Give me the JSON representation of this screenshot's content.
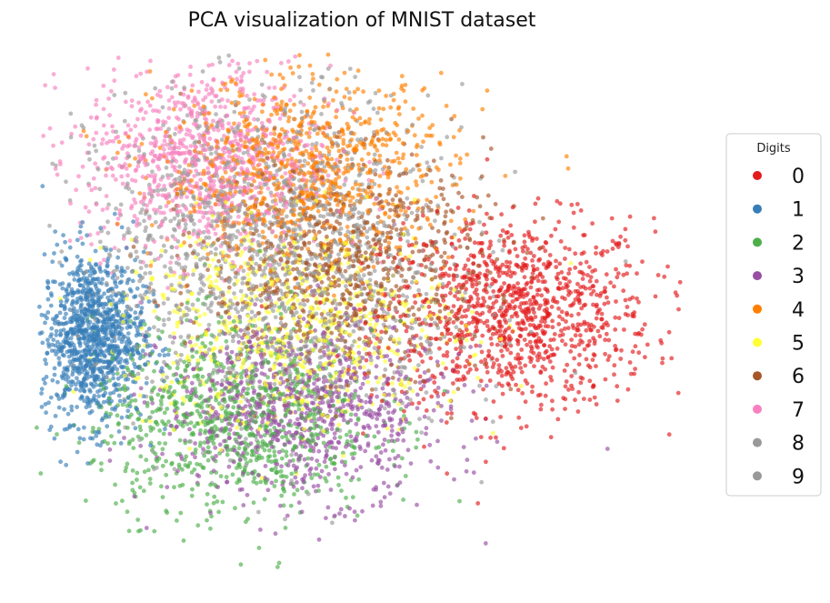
{
  "chart_data": {
    "type": "scatter",
    "title": "PCA visualization of MNIST dataset",
    "xlabel": "",
    "ylabel": "",
    "axes_visible": false,
    "grid": false,
    "legend": {
      "title": "Digits",
      "placement": "outside-right"
    },
    "xlim": [
      -7.5,
      15.5
    ],
    "ylim": [
      -11,
      11
    ],
    "series": [
      {
        "name": "0",
        "color": "#e41a1c",
        "center": [
          9.5,
          0
        ],
        "spread": [
          2.4,
          2.0
        ],
        "count": 1100
      },
      {
        "name": "1",
        "color": "#377eb8",
        "center": [
          -5.5,
          -1
        ],
        "spread": [
          0.9,
          1.8
        ],
        "count": 1100
      },
      {
        "name": "2",
        "color": "#4daf4a",
        "center": [
          -0.5,
          -4.5
        ],
        "spread": [
          2.5,
          2.0
        ],
        "count": 900
      },
      {
        "name": "3",
        "color": "#984ea3",
        "center": [
          2.0,
          -4.0
        ],
        "spread": [
          2.5,
          1.9
        ],
        "count": 900
      },
      {
        "name": "4",
        "color": "#ff7f00",
        "center": [
          2.0,
          6.0
        ],
        "spread": [
          2.6,
          2.0
        ],
        "count": 900
      },
      {
        "name": "5",
        "color": "#ffff33",
        "center": [
          1.5,
          -0.5
        ],
        "spread": [
          3.0,
          2.2
        ],
        "count": 700
      },
      {
        "name": "6",
        "color": "#a65628",
        "center": [
          3.5,
          2.0
        ],
        "spread": [
          2.5,
          2.3
        ],
        "count": 800
      },
      {
        "name": "7",
        "color": "#f781bf",
        "center": [
          -1.5,
          6.5
        ],
        "spread": [
          2.2,
          2.0
        ],
        "count": 900
      },
      {
        "name": "8",
        "color": "#999999",
        "center": [
          1.0,
          0.5
        ],
        "spread": [
          3.2,
          3.0
        ],
        "count": 800
      },
      {
        "name": "9",
        "color": "#999999",
        "center": [
          0.5,
          4.5
        ],
        "spread": [
          3.0,
          2.5
        ],
        "count": 800
      }
    ]
  }
}
